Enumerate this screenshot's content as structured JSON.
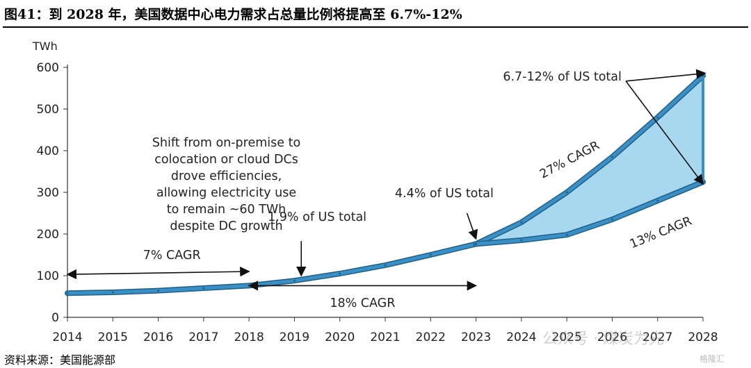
{
  "figure": {
    "title": "图41：到 2028 年，美国数据中心电力需求占总量比例将提高至 6.7%-12%",
    "source": "资料来源：美国能源部",
    "watermark": "公众号 · 煤炭为先",
    "watermark_corner": "格隆汇"
  },
  "chart_data": {
    "type": "area",
    "title": "",
    "xlabel": "",
    "ylabel": "TWh",
    "xlim": [
      2014,
      2028
    ],
    "ylim": [
      0,
      600
    ],
    "y_ticks": [
      0,
      100,
      200,
      300,
      400,
      500,
      600
    ],
    "x_ticks": [
      2014,
      2015,
      2016,
      2017,
      2018,
      2019,
      2020,
      2021,
      2022,
      2023,
      2024,
      2025,
      2026,
      2027,
      2028
    ],
    "grid": false,
    "legend": "none",
    "colors": {
      "line": "#3a8fc4",
      "line_edge": "#1f5f8b",
      "band_fill": "#a8d8f0",
      "arrow": "#111111"
    },
    "series": [
      {
        "x": [
          2014,
          2015,
          2016,
          2017,
          2018,
          2019,
          2020,
          2021,
          2022,
          2023
        ],
        "values": [
          58,
          60,
          64,
          70,
          76,
          88,
          105,
          125,
          150,
          176
        ]
      },
      {
        "x": [
          2023,
          2024,
          2025,
          2026,
          2027,
          2028
        ],
        "values": [
          176,
          228,
          300,
          385,
          480,
          580
        ]
      },
      {
        "x": [
          2023,
          2024,
          2025,
          2026,
          2027,
          2028
        ],
        "values": [
          176,
          185,
          198,
          235,
          280,
          325
        ]
      }
    ],
    "annotations": [
      {
        "text": "Shift from on-premise to\ncolocation or cloud DCs\ndrove efficiencies,\nallowing electricity use\nto remain ~60 TWh\ndespite DC growth",
        "x": 2017.5,
        "y": 410
      },
      {
        "text": "7% CAGR",
        "x": 2016.3,
        "y": 140,
        "arrow_from": [
          2014,
          103
        ],
        "arrow_to": [
          2018,
          110
        ]
      },
      {
        "text": "18% CAGR",
        "x": 2020.5,
        "y": 25,
        "arrow_from": [
          2018,
          76
        ],
        "arrow_to": [
          2023,
          76
        ]
      },
      {
        "text": "1.9% of US total",
        "x": 2019.5,
        "y": 232,
        "arrow_from": [
          2019.15,
          183
        ],
        "arrow_to": [
          2019.15,
          100
        ]
      },
      {
        "text": "4.4% of US total",
        "x": 2022.3,
        "y": 288,
        "arrow_from": [
          2022.8,
          250
        ],
        "arrow_to": [
          2023,
          188
        ]
      },
      {
        "text": "6.7-12% of US total",
        "x": 2024.9,
        "y": 568,
        "arrow_from": [
          2026.3,
          567
        ],
        "arrow_to": [
          2028.05,
          586
        ],
        "arrow2_to": [
          2028,
          320
        ]
      },
      {
        "text": "27% CAGR",
        "x": 2025.1,
        "y": 370,
        "rotate": -28
      },
      {
        "text": "13% CAGR",
        "x": 2027.1,
        "y": 195,
        "rotate": -22
      }
    ]
  }
}
